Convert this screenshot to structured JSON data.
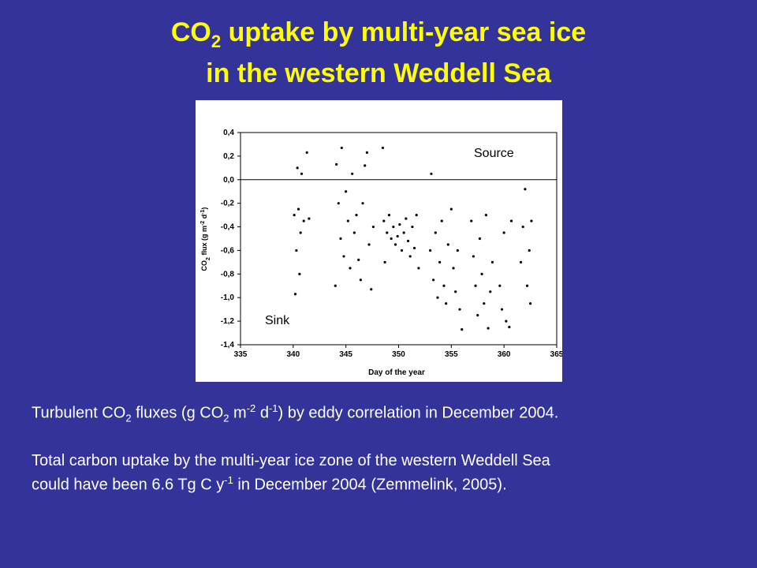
{
  "slide": {
    "title_line1": [
      "CO",
      "2",
      " uptake by multi-year sea ice"
    ],
    "title_line2": "in the western Weddell Sea",
    "caption1": [
      "Turbulent CO",
      "2",
      " fluxes (g CO",
      "2",
      " m",
      "-2",
      " d",
      "-1",
      ") by eddy correlation in December 2004."
    ],
    "caption2_line1": "Total carbon uptake by the multi-year ice zone of the western Weddell Sea",
    "caption2_line2": [
      "could have been 6.6 Tg C y",
      "-1",
      "  in December 2004 (Zemmelink, 2005)."
    ]
  },
  "chart_data": {
    "type": "scatter",
    "x_label": "Day of the year",
    "y_label": [
      "CO",
      "2",
      " flux (g m",
      "-2",
      " d",
      "-1",
      ")"
    ],
    "annotations": [
      "Source",
      "Sink"
    ],
    "color": "#000000",
    "xlim": [
      335,
      365
    ],
    "xticks": [
      335,
      340,
      345,
      350,
      355,
      360,
      365
    ],
    "ylim": [
      -1.4,
      0.4
    ],
    "yticks": [
      {
        "value": 0.4,
        "label": "0,4"
      },
      {
        "value": 0.2,
        "label": "0,2"
      },
      {
        "value": 0,
        "label": "0,0"
      },
      {
        "value": -0.2,
        "label": "-0,2"
      },
      {
        "value": -0.4,
        "label": "-0,4"
      },
      {
        "value": -0.6,
        "label": "-0,6"
      },
      {
        "value": -0.8,
        "label": "-0,8"
      },
      {
        "value": -1.0,
        "label": "-1,0"
      },
      {
        "value": -1.2,
        "label": "-1,2"
      },
      {
        "value": -1.4,
        "label": "-1,4"
      }
    ],
    "x": [
      340.1,
      340.2,
      340.3,
      340.4,
      340.5,
      340.6,
      340.7,
      340.8,
      341.0,
      341.3,
      341.5,
      344.0,
      344.1,
      344.3,
      344.5,
      344.6,
      344.8,
      345.0,
      345.2,
      345.4,
      345.6,
      345.8,
      346.0,
      346.2,
      346.4,
      346.6,
      346.8,
      347.0,
      347.2,
      347.4,
      347.6,
      348.5,
      348.6,
      348.7,
      348.9,
      349.1,
      349.3,
      349.5,
      349.7,
      349.9,
      350.1,
      350.3,
      350.5,
      350.7,
      350.9,
      351.1,
      351.3,
      351.5,
      351.7,
      351.9,
      353.0,
      353.1,
      353.3,
      353.5,
      353.7,
      353.9,
      354.1,
      354.3,
      354.5,
      354.7,
      355.0,
      355.2,
      355.4,
      355.6,
      355.8,
      356.0,
      356.9,
      357.1,
      357.3,
      357.5,
      357.7,
      357.9,
      358.1,
      358.3,
      358.5,
      358.7,
      358.9,
      359.6,
      359.8,
      360.0,
      360.2,
      360.5,
      360.7,
      361.6,
      361.8,
      362.0,
      362.2,
      362.4,
      362.5,
      362.6
    ],
    "y": [
      -0.3,
      -0.97,
      -0.6,
      0.1,
      -0.25,
      -0.8,
      -0.45,
      0.05,
      -0.35,
      0.23,
      -0.33,
      -0.9,
      0.13,
      -0.2,
      -0.5,
      0.27,
      -0.65,
      -0.1,
      -0.35,
      -0.75,
      0.05,
      -0.45,
      -0.3,
      -0.68,
      -0.85,
      -0.2,
      0.12,
      0.23,
      -0.55,
      -0.93,
      -0.4,
      0.27,
      -0.35,
      -0.7,
      -0.45,
      -0.3,
      -0.5,
      -0.4,
      -0.55,
      -0.48,
      -0.38,
      -0.6,
      -0.45,
      -0.33,
      -0.52,
      -0.65,
      -0.4,
      -0.58,
      -0.3,
      -0.75,
      -0.6,
      0.05,
      -0.85,
      -0.45,
      -1.0,
      -0.7,
      -0.35,
      -0.9,
      -1.05,
      -0.55,
      -0.25,
      -0.75,
      -0.95,
      -0.6,
      -1.1,
      -1.27,
      -0.35,
      -0.65,
      -0.9,
      -1.15,
      -0.5,
      -0.8,
      -1.05,
      -0.3,
      -1.26,
      -0.95,
      -0.7,
      -0.9,
      -1.1,
      -0.45,
      -1.2,
      -1.25,
      -0.35,
      -0.7,
      -0.4,
      -0.08,
      -0.9,
      -0.6,
      -1.05,
      -0.35
    ]
  }
}
